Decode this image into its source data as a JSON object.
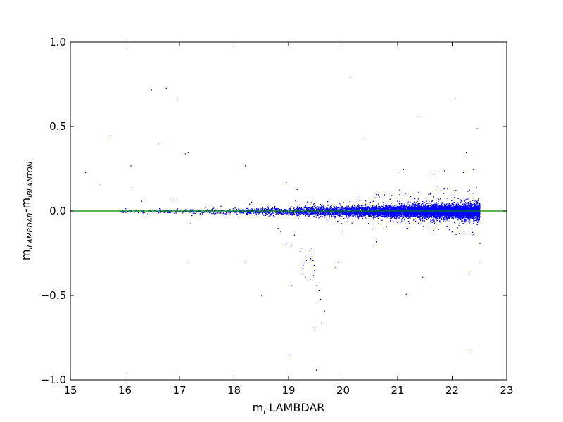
{
  "chart_data": {
    "type": "scatter",
    "title": "",
    "xlabel": "m_i LAMBDAR",
    "xlabel_parts": {
      "main": "m",
      "sub": "i",
      "rest": " LAMBDAR"
    },
    "ylabel": "m_iLAMBDAR-m_iBLANTON",
    "ylabel_parts": {
      "m1": "m",
      "sub1": "iLAMBDAR",
      "mid": "-m",
      "sub2": "iBLANTON"
    },
    "xlim": [
      15,
      23
    ],
    "ylim": [
      -1.0,
      1.0
    ],
    "x_ticks": [
      "15",
      "16",
      "17",
      "18",
      "19",
      "20",
      "21",
      "22",
      "23"
    ],
    "y_ticks": [
      "1.0",
      "0.5",
      "0.0",
      "−0.5",
      "−1.0"
    ],
    "grid": false,
    "colors": {
      "points": "#0000ff",
      "reference_line": "#008000",
      "axes": "#000000"
    },
    "reference_line": {
      "y": 0.0
    },
    "density_trend": {
      "x_start": 15.9,
      "x_end": 22.5,
      "scatter_sigma": [
        {
          "x": 16,
          "sigma": 0.004
        },
        {
          "x": 18,
          "sigma": 0.008
        },
        {
          "x": 19,
          "sigma": 0.012
        },
        {
          "x": 20,
          "sigma": 0.014
        },
        {
          "x": 21,
          "sigma": 0.017
        },
        {
          "x": 22,
          "sigma": 0.021
        },
        {
          "x": 22.5,
          "sigma": 0.023
        }
      ],
      "relative_density": [
        {
          "x": 16,
          "w": 0.2
        },
        {
          "x": 18,
          "w": 0.6
        },
        {
          "x": 19,
          "w": 1.6
        },
        {
          "x": 20,
          "w": 3.6
        },
        {
          "x": 21,
          "w": 6.5
        },
        {
          "x": 22,
          "w": 10.0
        },
        {
          "x": 22.5,
          "w": 12.0
        }
      ]
    },
    "outliers": [
      [
        15.27,
        0.23
      ],
      [
        15.55,
        0.16
      ],
      [
        15.72,
        0.45
      ],
      [
        16.1,
        0.27
      ],
      [
        16.12,
        0.14
      ],
      [
        16.48,
        0.72
      ],
      [
        16.6,
        0.4
      ],
      [
        16.75,
        0.73
      ],
      [
        16.95,
        0.66
      ],
      [
        17.1,
        0.34
      ],
      [
        17.15,
        0.35
      ],
      [
        17.15,
        -0.3
      ],
      [
        18.2,
        0.27
      ],
      [
        18.2,
        -0.3
      ],
      [
        18.5,
        -0.5
      ],
      [
        18.95,
        0.17
      ],
      [
        18.95,
        -0.19
      ],
      [
        19.05,
        -0.2
      ],
      [
        19.05,
        -0.44
      ],
      [
        19.0,
        -0.85
      ],
      [
        19.5,
        -0.94
      ],
      [
        19.48,
        -0.69
      ],
      [
        19.6,
        -0.66
      ],
      [
        19.65,
        -0.59
      ],
      [
        19.15,
        0.13
      ],
      [
        19.85,
        -0.33
      ],
      [
        19.9,
        -0.3
      ],
      [
        20.12,
        0.79
      ],
      [
        20.38,
        0.43
      ],
      [
        20.55,
        -0.2
      ],
      [
        20.6,
        -0.18
      ],
      [
        21.15,
        -0.49
      ],
      [
        21.35,
        0.56
      ],
      [
        21.45,
        -0.39
      ],
      [
        21.0,
        0.23
      ],
      [
        21.1,
        0.25
      ],
      [
        22.05,
        0.67
      ],
      [
        22.25,
        0.35
      ],
      [
        22.3,
        -0.37
      ],
      [
        22.35,
        -0.82
      ],
      [
        22.45,
        0.49
      ],
      [
        22.5,
        -0.3
      ],
      [
        22.5,
        -0.19
      ],
      [
        22.2,
        0.23
      ],
      [
        21.85,
        0.24
      ],
      [
        21.65,
        0.22
      ],
      [
        22.38,
        0.25
      ],
      [
        19.3,
        -0.27
      ],
      [
        19.32,
        -0.29
      ],
      [
        19.28,
        -0.3
      ],
      [
        19.26,
        -0.32
      ],
      [
        19.25,
        -0.34
      ],
      [
        19.27,
        -0.37
      ],
      [
        19.3,
        -0.39
      ],
      [
        19.35,
        -0.41
      ],
      [
        19.4,
        -0.4
      ],
      [
        19.45,
        -0.38
      ],
      [
        19.47,
        -0.35
      ],
      [
        19.46,
        -0.32
      ],
      [
        19.44,
        -0.29
      ],
      [
        19.4,
        -0.28
      ],
      [
        19.36,
        -0.27
      ],
      [
        19.38,
        -0.23
      ],
      [
        19.42,
        -0.22
      ],
      [
        19.5,
        -0.44
      ],
      [
        19.55,
        -0.47
      ],
      [
        19.58,
        -0.52
      ],
      [
        19.2,
        -0.24
      ],
      [
        19.22,
        -0.22
      ],
      [
        19.1,
        -0.14
      ],
      [
        18.85,
        -0.12
      ],
      [
        18.8,
        -0.1
      ],
      [
        17.2,
        -0.07
      ],
      [
        16.3,
        0.06
      ],
      [
        16.9,
        0.08
      ]
    ]
  }
}
